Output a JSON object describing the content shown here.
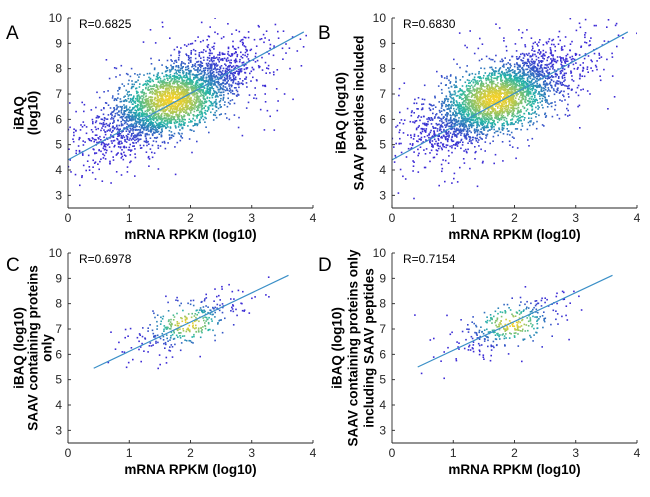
{
  "chart_data": [
    {
      "panel": "A",
      "type": "scatter",
      "r_label": "R=0.6825",
      "xlabel": "mRNA RPKM (log10)",
      "ylabel_lines": [
        "iBAQ",
        "(log10)"
      ],
      "xlim": [
        0,
        4
      ],
      "ylim": [
        2.5,
        10
      ],
      "xticks": [
        0,
        1,
        2,
        3,
        4
      ],
      "yticks": [
        3,
        4,
        5,
        6,
        7,
        8,
        9,
        10
      ],
      "density": "dense",
      "cloud": {
        "center_x": 1.7,
        "center_y": 6.75,
        "spread_x": 0.62,
        "spread_y": 0.95,
        "n_points": 3200
      },
      "fit_line": {
        "x": [
          0,
          3.85
        ],
        "y": [
          4.4,
          9.45
        ]
      }
    },
    {
      "panel": "B",
      "type": "scatter",
      "r_label": "R=0.6830",
      "xlabel": "mRNA RPKM (log10)",
      "ylabel_lines": [
        "iBAQ (log10)",
        "SAAV peptides included"
      ],
      "xlim": [
        0,
        4
      ],
      "ylim": [
        2.5,
        10
      ],
      "xticks": [
        0,
        1,
        2,
        3,
        4
      ],
      "yticks": [
        3,
        4,
        5,
        6,
        7,
        8,
        9,
        10
      ],
      "density": "dense",
      "cloud": {
        "center_x": 1.7,
        "center_y": 6.78,
        "spread_x": 0.62,
        "spread_y": 0.95,
        "n_points": 3200
      },
      "fit_line": {
        "x": [
          0,
          3.85
        ],
        "y": [
          4.4,
          9.45
        ]
      }
    },
    {
      "panel": "C",
      "type": "scatter",
      "r_label": "R=0.6978",
      "xlabel": "mRNA RPKM (log10)",
      "ylabel_lines": [
        "iBAQ (log10)",
        "SAAV containing proteins",
        "only"
      ],
      "xlim": [
        0,
        4
      ],
      "ylim": [
        2.5,
        10
      ],
      "xticks": [
        0,
        1,
        2,
        3,
        4
      ],
      "yticks": [
        3,
        4,
        5,
        6,
        7,
        8,
        9,
        10
      ],
      "density": "sparse",
      "cloud": {
        "center_x": 1.95,
        "center_y": 7.2,
        "spread_x": 0.45,
        "spread_y": 0.6,
        "n_points": 330
      },
      "fit_line": {
        "x": [
          0.42,
          3.6
        ],
        "y": [
          5.45,
          9.12
        ]
      }
    },
    {
      "panel": "D",
      "type": "scatter",
      "r_label": "R=0.7154",
      "xlabel": "mRNA RPKM (log10)",
      "ylabel_lines": [
        "iBAQ (log10)",
        "SAAV containing proteins only",
        "including SAAV peptides"
      ],
      "xlim": [
        0,
        4
      ],
      "ylim": [
        2.5,
        10
      ],
      "xticks": [
        0,
        1,
        2,
        3,
        4
      ],
      "yticks": [
        3,
        4,
        5,
        6,
        7,
        8,
        9,
        10
      ],
      "density": "sparse",
      "cloud": {
        "center_x": 1.95,
        "center_y": 7.2,
        "spread_x": 0.45,
        "spread_y": 0.6,
        "n_points": 330
      },
      "fit_line": {
        "x": [
          0.42,
          3.6
        ],
        "y": [
          5.5,
          9.12
        ]
      }
    }
  ],
  "colors": {
    "low_density": "#3d2ad6",
    "mid_density": "#23b5a8",
    "high_density": "#f5d12a",
    "fit_line": "#3a8fc7",
    "axes": "#262626"
  }
}
